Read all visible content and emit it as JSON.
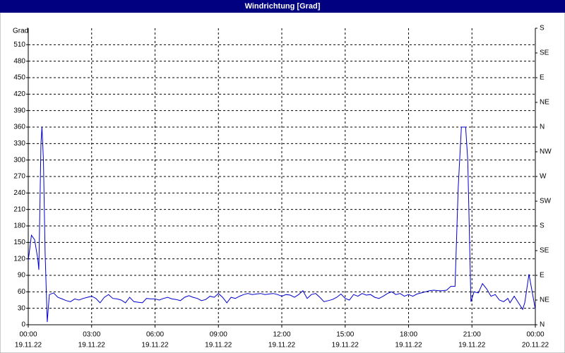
{
  "chart_data": {
    "type": "line",
    "title": "Windrichtung [Grad]",
    "ylabel": "Grad",
    "color": "#0000cc",
    "grid": true,
    "x": [
      0,
      0.15,
      0.3,
      0.45,
      0.5,
      0.6,
      0.65,
      0.72,
      0.8,
      0.9,
      1.0,
      1.2,
      1.4,
      1.6,
      1.8,
      2.0,
      2.2,
      2.4,
      2.6,
      2.8,
      3.0,
      3.2,
      3.4,
      3.6,
      3.8,
      4.0,
      4.2,
      4.4,
      4.6,
      4.8,
      5.0,
      5.2,
      5.4,
      5.6,
      5.8,
      6.0,
      6.2,
      6.4,
      6.6,
      6.8,
      7.0,
      7.2,
      7.4,
      7.6,
      7.8,
      8.0,
      8.2,
      8.4,
      8.6,
      8.8,
      9.0,
      9.2,
      9.4,
      9.6,
      9.8,
      10.0,
      10.2,
      10.4,
      10.6,
      10.8,
      11.0,
      11.2,
      11.4,
      11.6,
      11.8,
      12.0,
      12.2,
      12.4,
      12.6,
      12.8,
      13.0,
      13.2,
      13.4,
      13.6,
      13.8,
      14.0,
      14.2,
      14.4,
      14.6,
      14.8,
      15.0,
      15.2,
      15.4,
      15.6,
      15.8,
      16.0,
      16.2,
      16.4,
      16.6,
      16.8,
      17.0,
      17.2,
      17.4,
      17.6,
      17.8,
      18.0,
      18.2,
      18.4,
      18.6,
      18.8,
      19.0,
      19.2,
      19.4,
      19.6,
      19.8,
      20.0,
      20.2,
      20.35,
      20.5,
      20.7,
      20.8,
      20.95,
      21.1,
      21.3,
      21.5,
      21.7,
      21.9,
      22.1,
      22.3,
      22.5,
      22.7,
      22.8,
      23.0,
      23.2,
      23.4,
      23.5,
      23.7,
      24.0
    ],
    "values": [
      117,
      163,
      155,
      120,
      100,
      330,
      360,
      300,
      130,
      5,
      55,
      58,
      50,
      47,
      44,
      42,
      47,
      45,
      48,
      50,
      52,
      48,
      40,
      50,
      55,
      48,
      47,
      45,
      40,
      50,
      42,
      41,
      40,
      48,
      47,
      47,
      45,
      48,
      50,
      47,
      46,
      44,
      50,
      53,
      50,
      48,
      44,
      46,
      52,
      50,
      57,
      50,
      40,
      50,
      48,
      52,
      55,
      57,
      55,
      56,
      57,
      55,
      56,
      57,
      55,
      52,
      55,
      54,
      50,
      55,
      62,
      48,
      55,
      57,
      50,
      42,
      44,
      46,
      50,
      56,
      48,
      45,
      55,
      52,
      57,
      54,
      55,
      50,
      48,
      52,
      57,
      60,
      55,
      57,
      52,
      55,
      52,
      56,
      58,
      60,
      62,
      63,
      62,
      62,
      63,
      70,
      70,
      250,
      360,
      360,
      300,
      42,
      60,
      58,
      75,
      65,
      52,
      55,
      45,
      42,
      48,
      40,
      52,
      40,
      28,
      40,
      92,
      28
    ],
    "xlim": [
      0,
      24
    ],
    "xticks": [
      {
        "value": 0,
        "label": "00:00",
        "date": "19.11.22"
      },
      {
        "value": 3,
        "label": "03:00",
        "date": "19.11.22"
      },
      {
        "value": 6,
        "label": "06:00",
        "date": "19.11.22"
      },
      {
        "value": 9,
        "label": "09:00",
        "date": "19.11.22"
      },
      {
        "value": 12,
        "label": "12:00",
        "date": "19.11.22"
      },
      {
        "value": 15,
        "label": "15:00",
        "date": "19.11.22"
      },
      {
        "value": 18,
        "label": "18:00",
        "date": "19.11.22"
      },
      {
        "value": 21,
        "label": "21:00",
        "date": "19.11.22"
      },
      {
        "value": 24,
        "label": "00:00",
        "date": "20.11.22"
      }
    ],
    "ylim": [
      0,
      540
    ],
    "yticks": [
      0,
      30,
      60,
      90,
      120,
      150,
      180,
      210,
      240,
      270,
      300,
      330,
      360,
      390,
      420,
      450,
      480,
      510
    ],
    "y2lim": [
      0,
      540
    ],
    "y2ticks": [
      {
        "value": 0,
        "label": "N"
      },
      {
        "value": 45,
        "label": "NE"
      },
      {
        "value": 90,
        "label": "E"
      },
      {
        "value": 135,
        "label": "SE"
      },
      {
        "value": 180,
        "label": "S"
      },
      {
        "value": 225,
        "label": "SW"
      },
      {
        "value": 270,
        "label": "W"
      },
      {
        "value": 315,
        "label": "NW"
      },
      {
        "value": 360,
        "label": "N"
      },
      {
        "value": 405,
        "label": "NE"
      },
      {
        "value": 450,
        "label": "E"
      },
      {
        "value": 495,
        "label": "SE"
      },
      {
        "value": 540,
        "label": "S"
      }
    ]
  }
}
